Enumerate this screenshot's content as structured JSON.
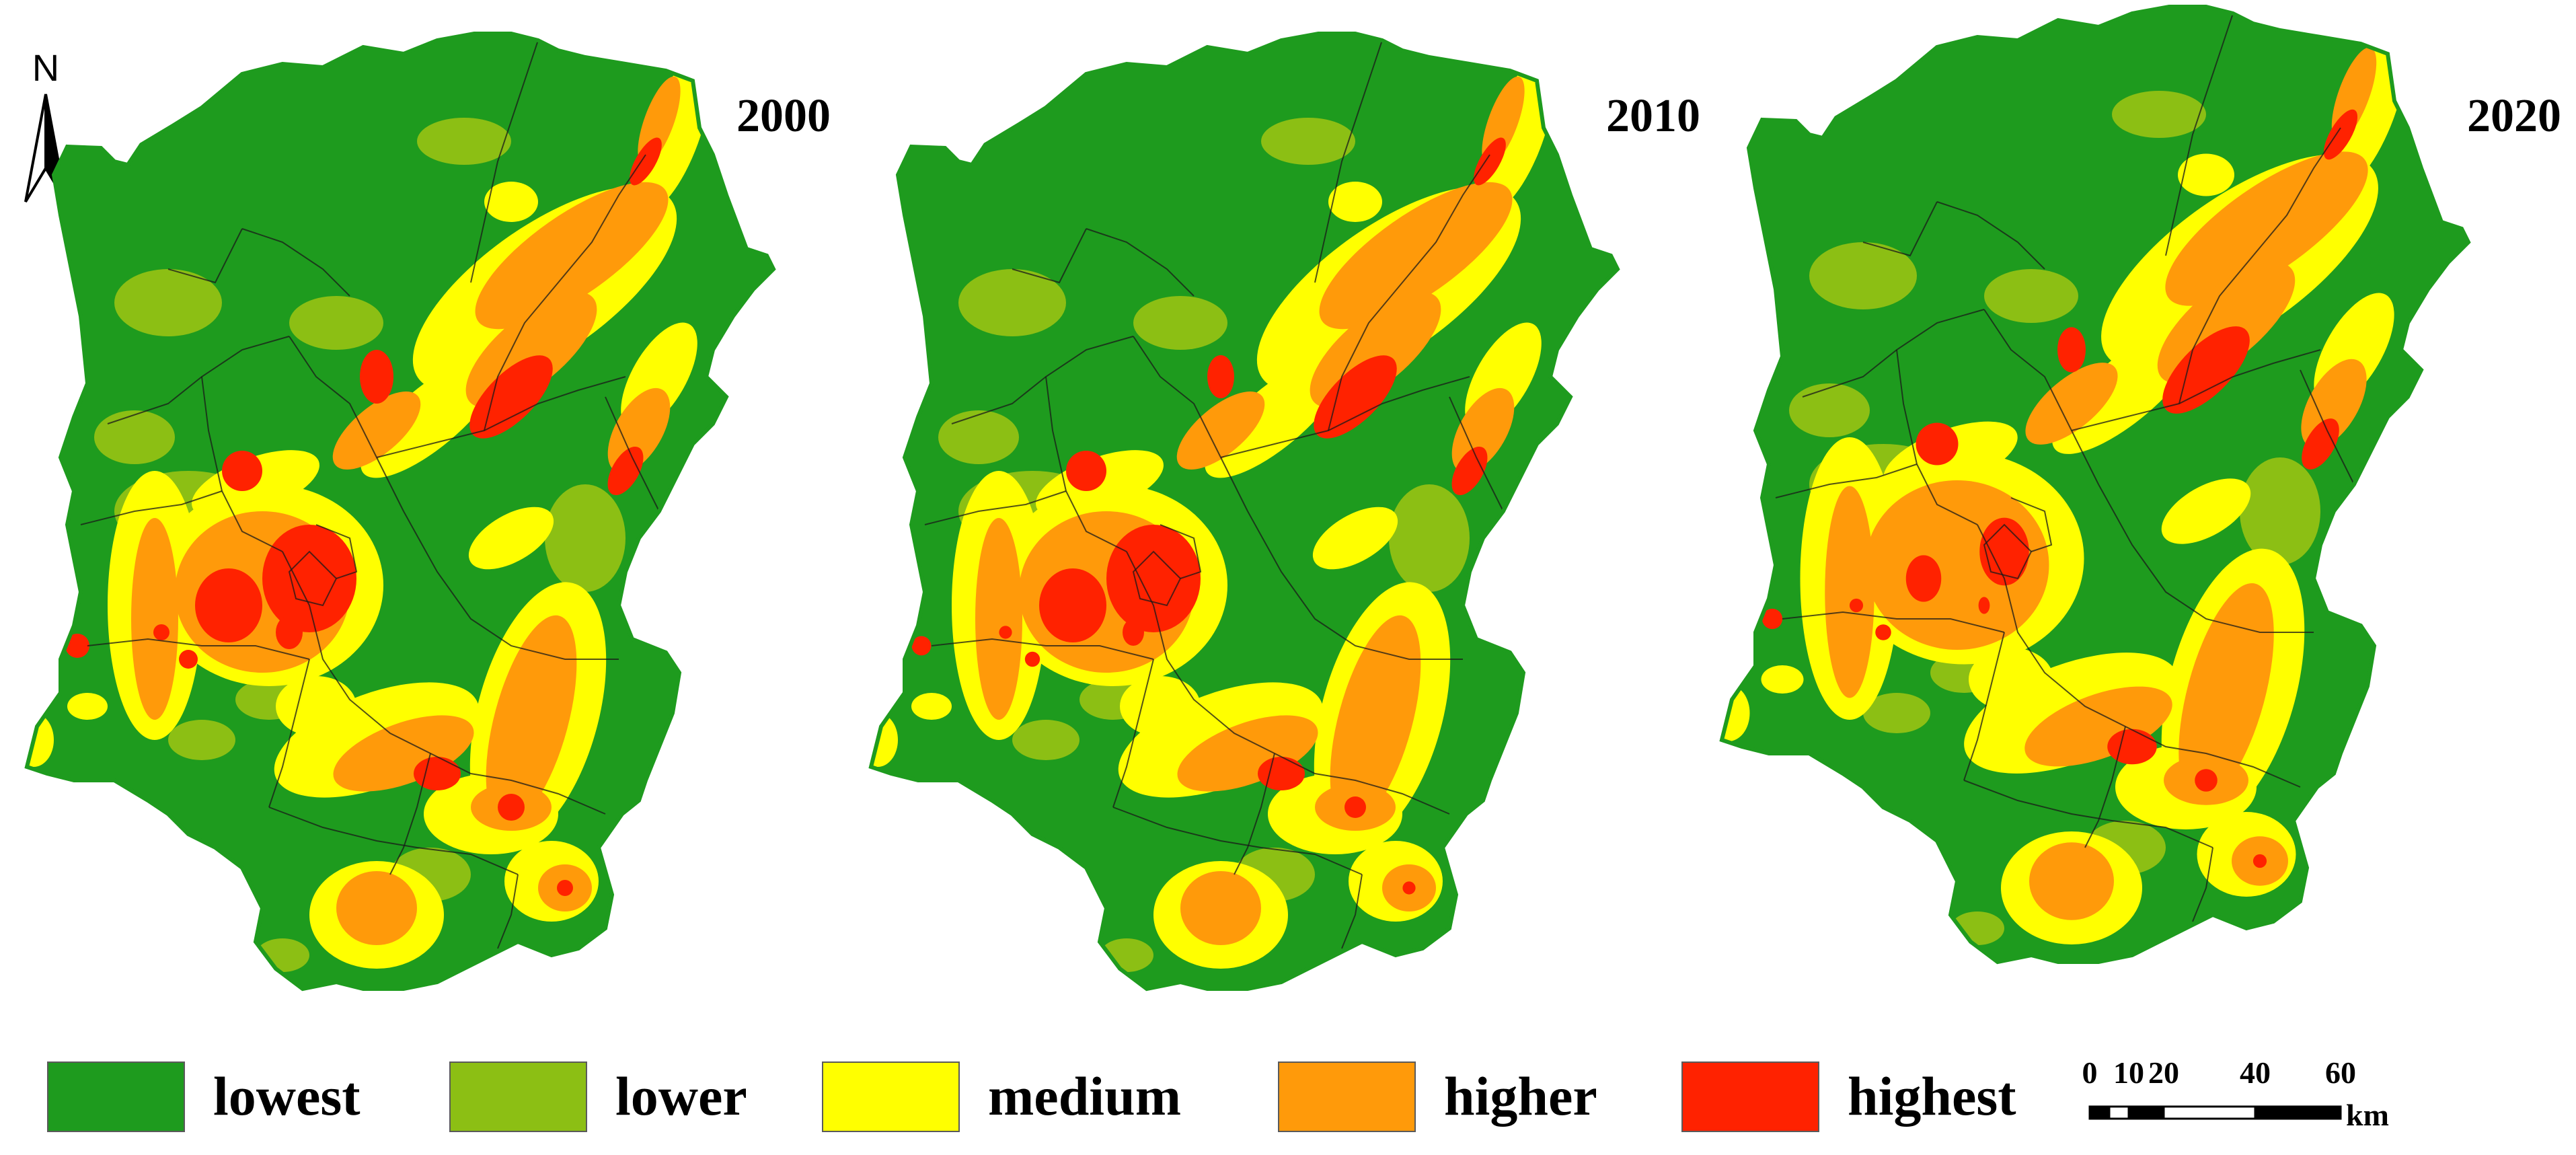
{
  "panels": [
    {
      "year": "2000",
      "variant": 0
    },
    {
      "year": "2010",
      "variant": 1
    },
    {
      "year": "2020",
      "variant": 2
    }
  ],
  "north_arrow": {
    "label": "N"
  },
  "legend": [
    {
      "label": "lowest",
      "color": "#1e9b1e"
    },
    {
      "label": "lower",
      "color": "#8cbf14"
    },
    {
      "label": "medium",
      "color": "#ffff00"
    },
    {
      "label": "higher",
      "color": "#ff9a0a"
    },
    {
      "label": "highest",
      "color": "#ff2200"
    }
  ],
  "scale_bar": {
    "ticks": [
      "0",
      "10",
      "20",
      "40",
      "60"
    ],
    "unit": "km"
  }
}
